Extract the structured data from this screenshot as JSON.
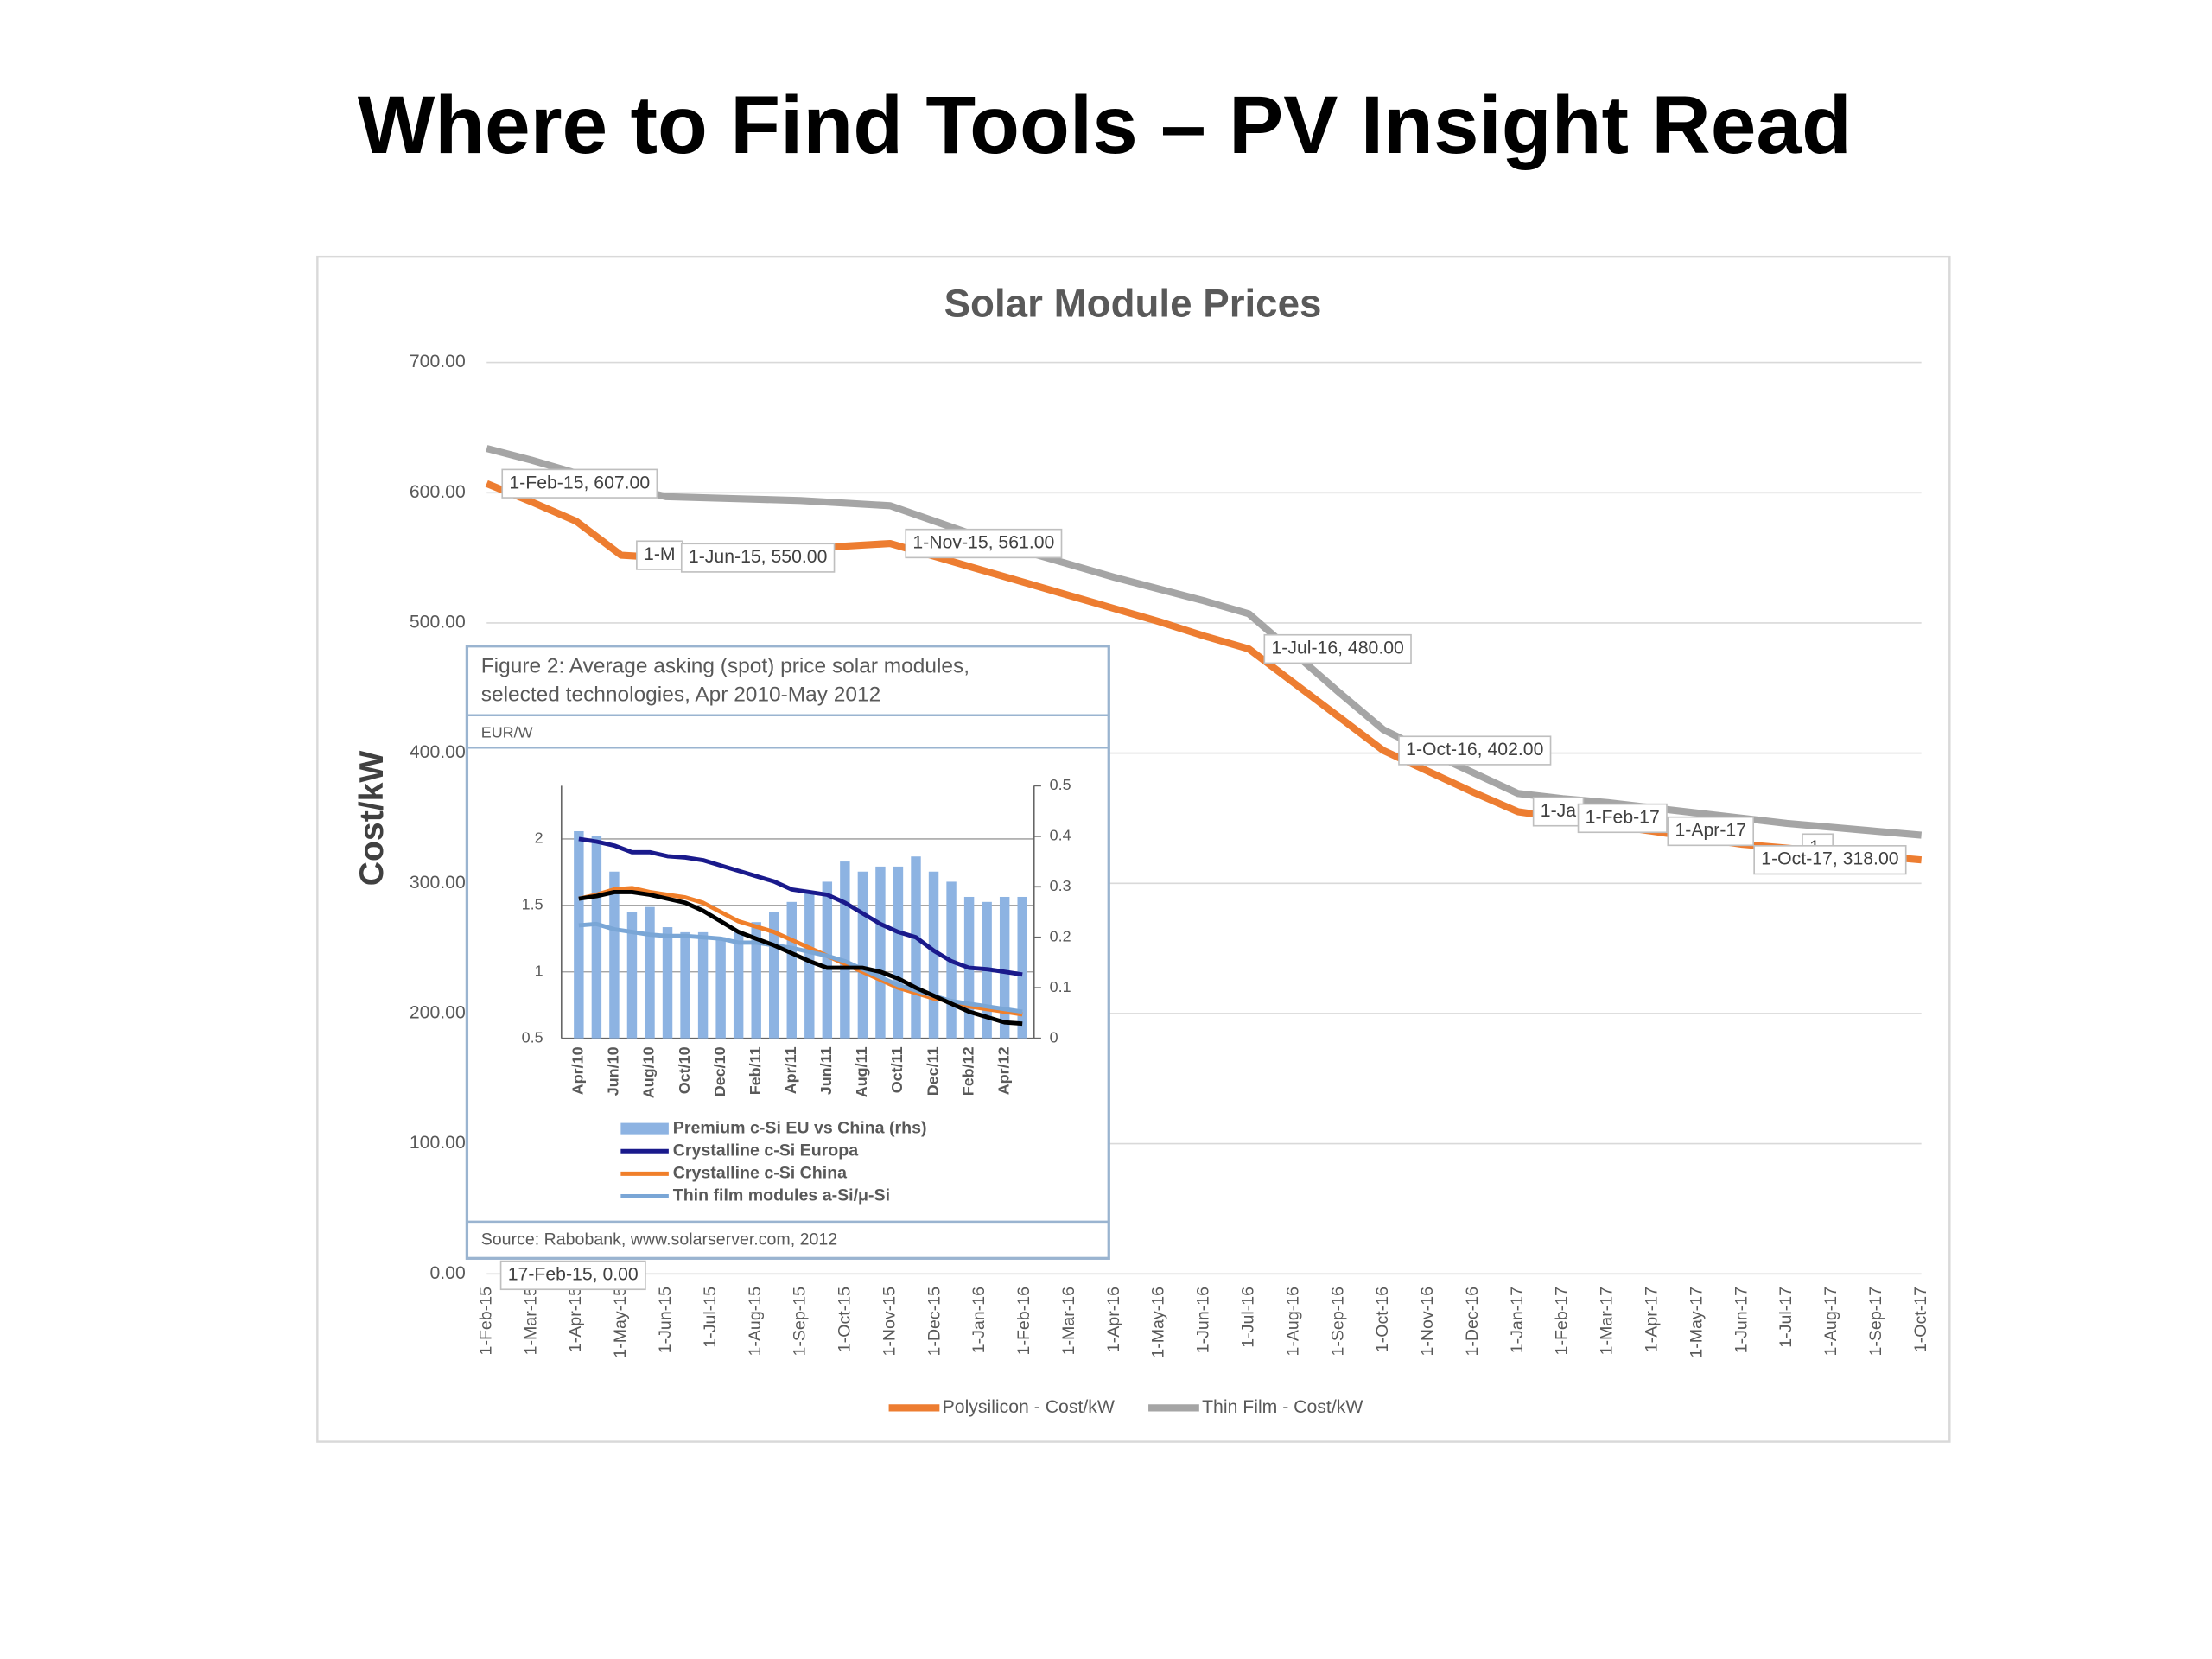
{
  "slide": {
    "title": "Where to Find Tools – PV Insight Read"
  },
  "chart_data": [
    {
      "type": "line",
      "title": "Solar Module Prices",
      "y_label": "Cost/kW",
      "categories": [
        "1-Feb-15",
        "1-Mar-15",
        "1-Apr-15",
        "1-May-15",
        "1-Jun-15",
        "1-Jul-15",
        "1-Aug-15",
        "1-Sep-15",
        "1-Oct-15",
        "1-Nov-15",
        "1-Dec-15",
        "1-Jan-16",
        "1-Feb-16",
        "1-Mar-16",
        "1-Apr-16",
        "1-May-16",
        "1-Jun-16",
        "1-Jul-16",
        "1-Aug-16",
        "1-Sep-16",
        "1-Oct-16",
        "1-Nov-16",
        "1-Dec-16",
        "1-Jan-17",
        "1-Feb-17",
        "1-Mar-17",
        "1-Apr-17",
        "1-May-17",
        "1-Jun-17",
        "1-Jul-17",
        "1-Aug-17",
        "1-Sep-17",
        "1-Oct-17"
      ],
      "series": [
        {
          "name": "Polysilicon - Cost/kW",
          "color": "#ed7d31",
          "values": [
            607,
            593,
            578,
            552,
            550,
            552,
            554,
            557,
            559,
            561,
            551,
            541,
            531,
            521,
            511,
            501,
            490,
            480,
            454,
            428,
            402,
            386,
            370,
            355,
            350,
            345,
            340,
            335,
            330,
            327,
            324,
            321,
            318
          ],
          "value_labels": [
            "1-Feb-15, 607.00",
            null,
            null,
            "1-M",
            "1-Jun-15, 550.00",
            null,
            null,
            null,
            null,
            "1-Nov-15, 561.00",
            null,
            null,
            null,
            null,
            null,
            null,
            null,
            "1-Jul-16, 480.00",
            null,
            null,
            "1-Oct-16, 402.00",
            null,
            null,
            "1-Ja",
            "1-Feb-17",
            null,
            "1-Apr-17",
            null,
            null,
            "1-",
            null,
            null,
            "1-Oct-17, 318.00"
          ]
        },
        {
          "name": "Thin Film - Cost/kW",
          "color": "#a5a5a5",
          "values": [
            634,
            625,
            615,
            605,
            597,
            596,
            595,
            594,
            592,
            590,
            578,
            566,
            555,
            545,
            535,
            526,
            517,
            507,
            477,
            447,
            418,
            401,
            385,
            369,
            365,
            362,
            358,
            354,
            350,
            346,
            343,
            340,
            337
          ]
        }
      ],
      "ylim": [
        0,
        700
      ],
      "yticks": [
        {
          "value": 0,
          "label": "0.00"
        },
        {
          "value": 100,
          "label": "100.00"
        },
        {
          "value": 200,
          "label": "200.00"
        },
        {
          "value": 300,
          "label": "300.00"
        },
        {
          "value": 400,
          "label": "400.00"
        },
        {
          "value": 500,
          "label": "500.00"
        },
        {
          "value": 600,
          "label": "600.00"
        },
        {
          "value": 700,
          "label": "700.00"
        }
      ],
      "grid": true,
      "legend": "bottom",
      "annotations": [
        "17-Feb-15, 0.00"
      ]
    },
    {
      "type": "combo",
      "title": [
        "Figure 2: Average asking (spot) price solar modules,",
        "selected technologies, Apr 2010-May 2012"
      ],
      "unit": "EUR/W",
      "source": "Source: Rabobank, www.solarserver.com, 2012",
      "categories": [
        "Apr/10",
        null,
        "Jun/10",
        null,
        "Aug/10",
        null,
        "Oct/10",
        null,
        "Dec/10",
        null,
        "Feb/11",
        null,
        "Apr/11",
        null,
        "Jun/11",
        null,
        "Aug/11",
        null,
        "Oct/11",
        null,
        "Dec/11",
        null,
        "Feb/12",
        null,
        "Apr/12",
        null
      ],
      "series": [
        {
          "name": "Premium c-Si EU vs China (rhs)",
          "type": "bar",
          "axis": "y2",
          "color": "#8db3e2",
          "values": [
            0.41,
            0.4,
            0.33,
            0.25,
            0.26,
            0.22,
            0.21,
            0.21,
            0.2,
            0.21,
            0.23,
            0.25,
            0.27,
            0.29,
            0.31,
            0.35,
            0.33,
            0.34,
            0.34,
            0.36,
            0.33,
            0.31,
            0.28,
            0.27,
            0.28,
            0.28
          ]
        },
        {
          "name": "Crystalline c-Si Europa",
          "type": "line",
          "color": "#1a1a8c",
          "values": [
            2.0,
            1.98,
            1.95,
            1.9,
            1.9,
            1.87,
            1.86,
            1.84,
            1.8,
            1.76,
            1.72,
            1.68,
            1.62,
            1.6,
            1.58,
            1.52,
            1.44,
            1.36,
            1.3,
            1.26,
            1.16,
            1.08,
            1.03,
            1.02,
            1.0,
            0.98
          ]
        },
        {
          "name": "Crystalline c-Si China",
          "type": "line",
          "color": "#f07f2a",
          "values": [
            1.55,
            1.58,
            1.62,
            1.63,
            1.6,
            1.58,
            1.56,
            1.52,
            1.45,
            1.38,
            1.34,
            1.3,
            1.24,
            1.18,
            1.12,
            1.06,
            1.0,
            0.94,
            0.88,
            0.84,
            0.8,
            0.78,
            0.74,
            0.72,
            0.7,
            0.68
          ]
        },
        {
          "name": "Thin film modules a-Si/μ-Si",
          "type": "line",
          "color": "#7aa6d6",
          "values": [
            1.35,
            1.36,
            1.32,
            1.3,
            1.28,
            1.27,
            1.27,
            1.26,
            1.25,
            1.22,
            1.22,
            1.2,
            1.18,
            1.15,
            1.12,
            1.08,
            1.02,
            0.96,
            0.9,
            0.86,
            0.82,
            0.78,
            0.76,
            0.74,
            0.72,
            0.7
          ]
        },
        {
          "type": "line",
          "color": "#000000",
          "values": [
            1.55,
            1.57,
            1.6,
            1.6,
            1.58,
            1.55,
            1.52,
            1.46,
            1.38,
            1.3,
            1.25,
            1.2,
            1.14,
            1.08,
            1.03,
            1.03,
            1.03,
            1.0,
            0.95,
            0.88,
            0.82,
            0.76,
            0.7,
            0.66,
            0.62,
            0.61
          ]
        }
      ],
      "ylim": [
        0.5,
        2.4
      ],
      "yticks": [
        0.5,
        1,
        1.5,
        2
      ],
      "y2lim": [
        0,
        0.5
      ],
      "y2ticks": [
        0,
        0.1,
        0.2,
        0.3,
        0.4,
        0.5
      ],
      "grid": true
    }
  ]
}
